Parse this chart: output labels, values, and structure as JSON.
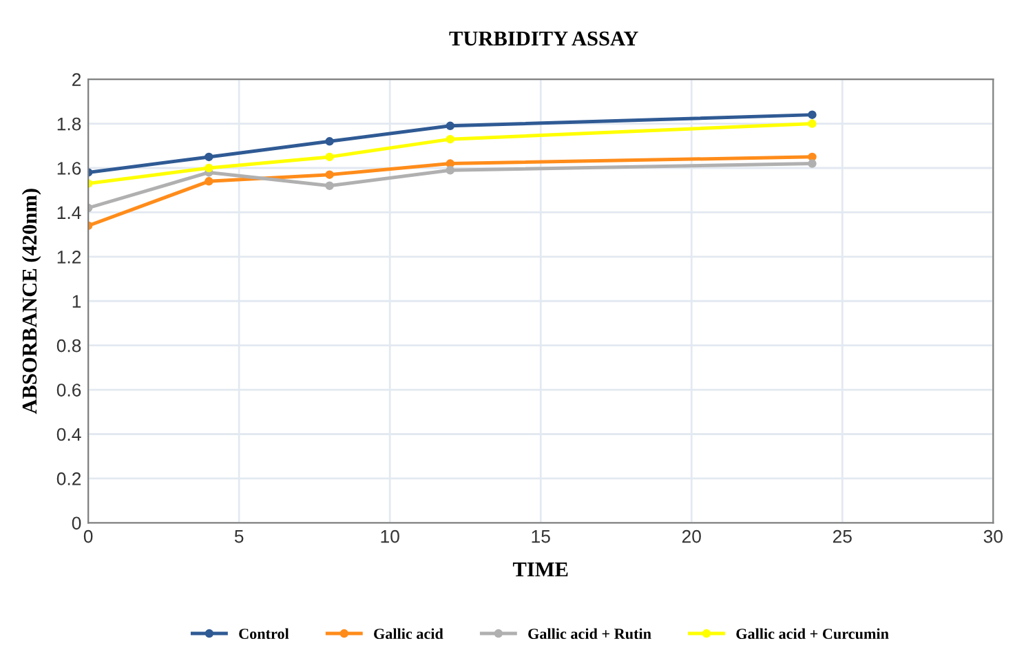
{
  "chart_data": {
    "type": "line",
    "title": "TURBIDITY ASSAY",
    "xlabel": "TIME",
    "ylabel": "ABSORBANCE (420nm)",
    "x": [
      0,
      4,
      8,
      12,
      24
    ],
    "series": [
      {
        "name": "Control",
        "color": "#2f5a94",
        "values": [
          1.58,
          1.65,
          1.72,
          1.79,
          1.84
        ]
      },
      {
        "name": "Gallic acid",
        "color": "#ff8c1a",
        "values": [
          1.34,
          1.54,
          1.57,
          1.62,
          1.65
        ]
      },
      {
        "name": "Gallic acid + Rutin",
        "color": "#b0b0b0",
        "values": [
          1.42,
          1.58,
          1.52,
          1.59,
          1.62
        ]
      },
      {
        "name": "Gallic acid + Curcumin",
        "color": "#ffff00",
        "values": [
          1.53,
          1.6,
          1.65,
          1.73,
          1.8
        ]
      }
    ],
    "xlim": [
      0,
      30
    ],
    "xticks": [
      0,
      5,
      10,
      15,
      20,
      25,
      30
    ],
    "ylim": [
      0,
      2
    ],
    "yticks": [
      0,
      0.2,
      0.4,
      0.6,
      0.8,
      1,
      1.2,
      1.4,
      1.6,
      1.8,
      2
    ],
    "grid": true,
    "legend": "bottom",
    "marker": "circle",
    "line_style": "solid"
  }
}
